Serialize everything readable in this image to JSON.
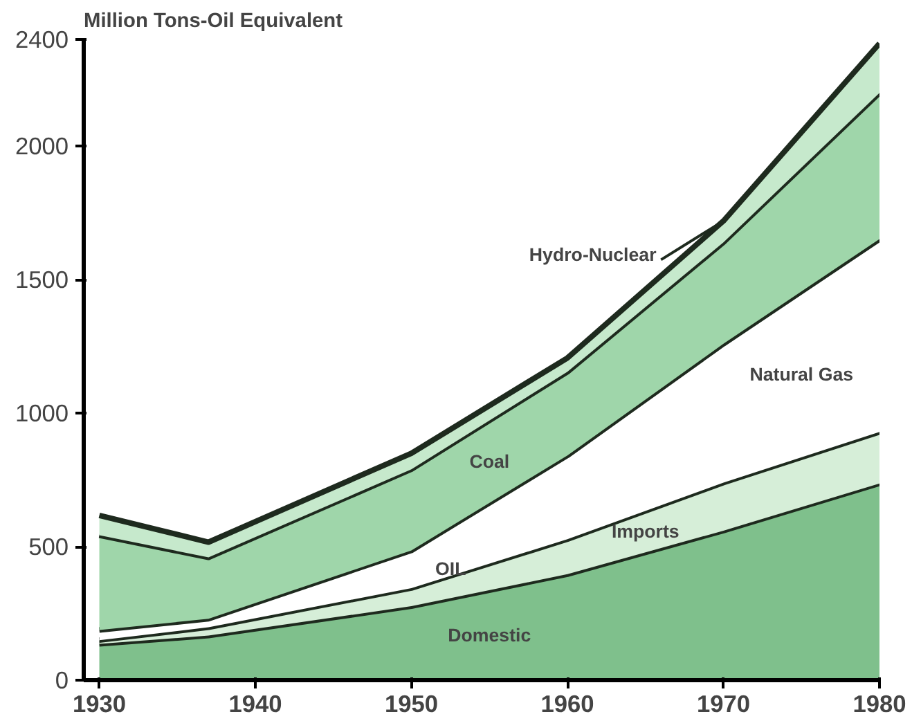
{
  "chart_data": {
    "type": "area",
    "stacked": true,
    "ylabel": "Million Tons-Oil Equivalent",
    "x": [
      1930,
      1937,
      1950,
      1960,
      1970,
      1980
    ],
    "series": [
      {
        "name": "Domestic",
        "color": "#7fc08c",
        "values": [
          136,
          167,
          277,
          397,
          560,
          737
        ]
      },
      {
        "name": "Imports",
        "color": "#d6eed8",
        "values": [
          14,
          31,
          68,
          131,
          180,
          193
        ]
      },
      {
        "name": "Natural Gas",
        "color": "#ffffff",
        "values": [
          38,
          32,
          141,
          314,
          520,
          722
        ]
      },
      {
        "name": "Coal",
        "color": "#9fd6aa",
        "values": [
          355,
          230,
          304,
          313,
          380,
          548
        ]
      },
      {
        "name": "Hydro-Nuclear",
        "color": "#c6e9cc",
        "values": [
          74,
          57,
          60,
          52,
          80,
          185
        ]
      }
    ],
    "annotations": [
      "OIL"
    ],
    "xlim": [
      1929,
      1980
    ],
    "ylim": [
      0,
      2400
    ],
    "xticks": [
      1930,
      1940,
      1950,
      1960,
      1970,
      1980
    ],
    "yticks": [
      0,
      500,
      1000,
      1500,
      2000,
      2400
    ],
    "grid": false
  }
}
